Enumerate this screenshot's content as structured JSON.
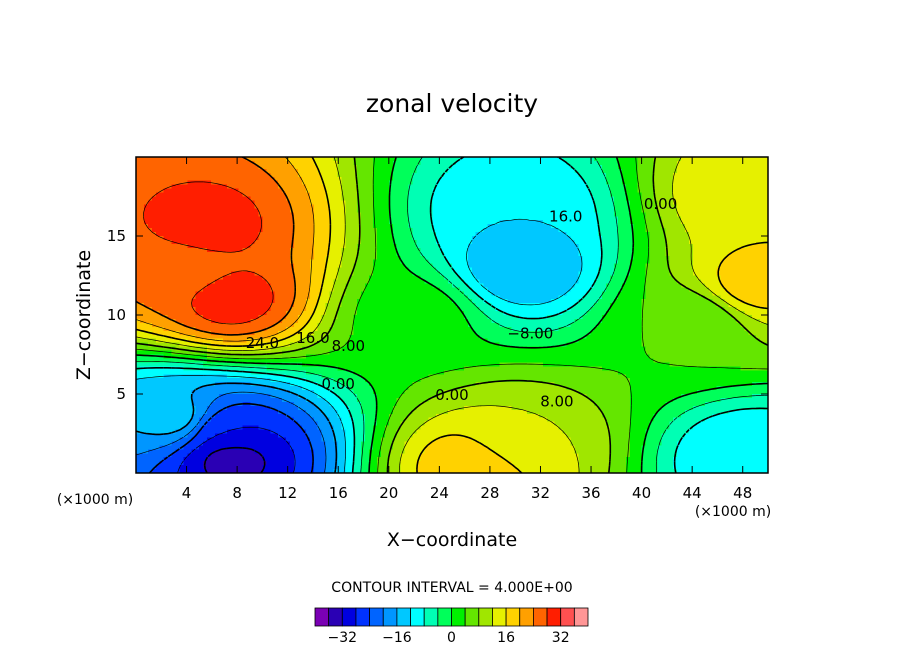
{
  "chart_data": {
    "type": "heatmap",
    "title": "zonal velocity",
    "xlabel": "X−coordinate",
    "ylabel": "Z−coordinate",
    "x_unit": "(×1000 m)",
    "x_unit_right": "(×1000 m)",
    "xlim": [
      0,
      50
    ],
    "ylim": [
      0,
      20
    ],
    "x_ticks": [
      4,
      8,
      12,
      16,
      20,
      24,
      28,
      32,
      36,
      40,
      44,
      48
    ],
    "y_ticks": [
      5,
      10,
      15
    ],
    "contour_interval_text": "CONTOUR INTERVAL = 4.000E+00",
    "contour_labels": [
      {
        "text": "24.0",
        "x": 10.0,
        "z": 8.2
      },
      {
        "text": "16.0",
        "x": 14.0,
        "z": 8.5
      },
      {
        "text": "8.00",
        "x": 16.8,
        "z": 8.0
      },
      {
        "text": "0.00",
        "x": 16.0,
        "z": 5.6
      },
      {
        "text": "0.00",
        "x": 25.0,
        "z": 4.9
      },
      {
        "text": "8.00",
        "x": 33.3,
        "z": 4.5
      },
      {
        "text": "−8.00",
        "x": 31.2,
        "z": 8.8
      },
      {
        "text": "16.0",
        "x": 34.0,
        "z": 16.2
      },
      {
        "text": "0.00",
        "x": 41.5,
        "z": 17.0
      }
    ],
    "field_features": [
      {
        "x": 5.5,
        "z": 15.5,
        "value": 30
      },
      {
        "x": 7.5,
        "z": 11.0,
        "value": 30
      },
      {
        "x": 4.0,
        "z": 13.0,
        "value": 26
      },
      {
        "x": 7.5,
        "z": 1.0,
        "value": -34
      },
      {
        "x": 7.0,
        "z": 2.5,
        "value": -28
      },
      {
        "x": 3.0,
        "z": 3.5,
        "value": -14
      },
      {
        "x": 30.5,
        "z": 13.0,
        "value": -16
      },
      {
        "x": 30.0,
        "z": 16.5,
        "value": -12
      },
      {
        "x": 30.0,
        "z": 2.0,
        "value": 12
      },
      {
        "x": 27.0,
        "z": 0.5,
        "value": 20
      },
      {
        "x": 44.0,
        "z": 9.5,
        "value": 4
      },
      {
        "x": 48.5,
        "z": 17.5,
        "value": 16
      },
      {
        "x": 49.0,
        "z": 12.0,
        "value": 18
      },
      {
        "x": 48.5,
        "z": 1.0,
        "value": -12
      },
      {
        "x": 22.0,
        "z": 10.0,
        "value": 2
      }
    ],
    "colorbar": {
      "ticks": [
        -32,
        -16,
        0,
        16,
        32
      ],
      "tick_labels": [
        "−32",
        "−16",
        "0",
        "16",
        "32"
      ],
      "levels": [
        -36,
        -32,
        -28,
        -24,
        -20,
        -16,
        -12,
        -8,
        -4,
        0,
        4,
        8,
        12,
        16,
        20,
        24,
        28,
        32,
        36
      ],
      "colors": [
        "#7a00b4",
        "#2a00b4",
        "#0000e0",
        "#0032ff",
        "#0064ff",
        "#0096ff",
        "#00c8ff",
        "#00ffff",
        "#00ffb4",
        "#00ff5a",
        "#00f000",
        "#64e600",
        "#a0e600",
        "#e6f000",
        "#ffd200",
        "#ffa000",
        "#ff6400",
        "#ff1e00",
        "#ff5050",
        "#ff9696"
      ]
    },
    "grid": false,
    "legend": "colorbar-bottom"
  }
}
